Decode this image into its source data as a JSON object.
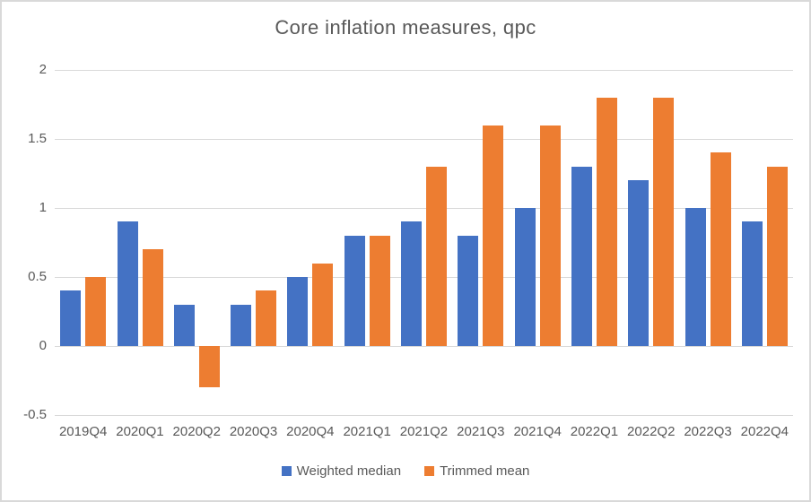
{
  "chart": {
    "title": "Core inflation measures, qpc"
  },
  "chart_data": {
    "type": "bar",
    "title": "Core inflation measures, qpc",
    "categories": [
      "2019Q4",
      "2020Q1",
      "2020Q2",
      "2020Q3",
      "2020Q4",
      "2021Q1",
      "2021Q2",
      "2021Q3",
      "2021Q4",
      "2022Q1",
      "2022Q2",
      "2022Q3",
      "2022Q4"
    ],
    "series": [
      {
        "name": "Weighted median",
        "color": "#4472C4",
        "values": [
          0.4,
          0.9,
          0.3,
          0.3,
          0.5,
          0.8,
          0.9,
          0.8,
          1.0,
          1.3,
          1.2,
          1.0,
          0.9
        ]
      },
      {
        "name": "Trimmed mean",
        "color": "#ED7D31",
        "values": [
          0.5,
          0.7,
          -0.3,
          0.4,
          0.6,
          0.8,
          1.3,
          1.6,
          1.6,
          1.8,
          1.8,
          1.4,
          1.3
        ]
      }
    ],
    "xlabel": "",
    "ylabel": "",
    "ylim": [
      -0.5,
      2
    ],
    "yticks": [
      2,
      1.5,
      1,
      0.5,
      0,
      -0.5
    ],
    "ytick_labels": [
      "2",
      "1.5",
      "1",
      "0.5",
      "0",
      "-0.5"
    ],
    "grid": true,
    "legend_position": "bottom",
    "colors": {
      "grid": "#D9D9D9",
      "text": "#595959",
      "background": "#FFFFFF",
      "border": "#D9D9D9"
    }
  }
}
